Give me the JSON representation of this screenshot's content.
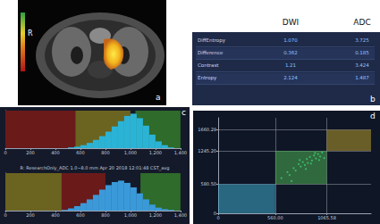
{
  "figure": {
    "labels": [
      "a",
      "b",
      "c",
      "d"
    ],
    "image": {
      "side_label": "R"
    },
    "table": {
      "columns": [
        "DWI",
        "ADC"
      ],
      "rows": [
        {
          "label": "DiffEntropy",
          "values": [
            "1.070",
            "3.725"
          ]
        },
        {
          "label": "Difference",
          "values": [
            "0.362",
            "0.185"
          ]
        },
        {
          "label": "Contrast",
          "values": [
            "1.21",
            "3.424"
          ]
        },
        {
          "label": "Entropy",
          "values": [
            "2.124",
            "1.487"
          ]
        }
      ]
    }
  },
  "chart_data": [
    {
      "type": "histogram",
      "bins": [
        0,
        50,
        100,
        150,
        200,
        250,
        300,
        350,
        400,
        450,
        500,
        550,
        600,
        650,
        700,
        750,
        800,
        850,
        900,
        950,
        1000,
        1050,
        1100,
        1150,
        1200,
        1250,
        1300,
        1350,
        1400
      ],
      "values": [
        0,
        0,
        0,
        0,
        0,
        0,
        0,
        0,
        0,
        0,
        1,
        2,
        4,
        7,
        11,
        16,
        22,
        29,
        36,
        43,
        46,
        40,
        30,
        18,
        9,
        4,
        1,
        0
      ],
      "color": "#2bb3d6",
      "xlim": [
        0,
        1400
      ],
      "xticks": [
        0,
        200,
        400,
        600,
        800,
        1000,
        1200,
        1400
      ],
      "ylim": [
        0,
        50
      ],
      "tick_labels": "x",
      "regions": [
        {
          "from": 0,
          "to": 560,
          "color": "#6b1a1a"
        },
        {
          "from": 560,
          "to": 1000,
          "color": "#6b6420"
        },
        {
          "from": 1040,
          "to": 1400,
          "color": "#2f6b2a"
        }
      ]
    },
    {
      "type": "histogram",
      "title": "R: ResearchOnly_ADC 1.0~8.0 mm Apr 20 2018 12:01:48 CST_avg",
      "bins": [
        0,
        50,
        100,
        150,
        200,
        250,
        300,
        350,
        400,
        450,
        500,
        550,
        600,
        650,
        700,
        750,
        800,
        850,
        900,
        950,
        1000,
        1050,
        1100,
        1150,
        1200,
        1250,
        1300,
        1350,
        1400
      ],
      "values": [
        0,
        0,
        0,
        0,
        0,
        0,
        0,
        0,
        0,
        1,
        3,
        6,
        10,
        15,
        21,
        28,
        34,
        38,
        40,
        37,
        31,
        23,
        15,
        8,
        4,
        2,
        1,
        0
      ],
      "color": "#3a9ad9",
      "xlim": [
        0,
        1400
      ],
      "xticks": [
        0,
        200,
        400,
        600,
        800,
        1000,
        1200,
        1400
      ],
      "ylim": [
        0,
        50
      ],
      "tick_labels": "x",
      "regions": [
        {
          "from": 0,
          "to": 450,
          "color": "#6b6420"
        },
        {
          "from": 450,
          "to": 800,
          "color": "#6b1a1a"
        },
        {
          "from": 1080,
          "to": 1400,
          "color": "#2f6b2a"
        }
      ]
    },
    {
      "type": "scatter",
      "x": [
        620,
        680,
        700,
        740,
        760,
        790,
        810,
        830,
        850,
        870,
        880,
        900,
        920,
        940,
        960,
        980,
        1000,
        1020,
        720,
        800,
        860,
        910,
        950,
        990,
        1040
      ],
      "y": [
        700,
        820,
        760,
        900,
        850,
        980,
        930,
        1020,
        960,
        1080,
        1000,
        1120,
        1050,
        1150,
        1090,
        1180,
        1130,
        1210,
        640,
        1060,
        880,
        990,
        1200,
        1060,
        1100
      ],
      "color": "#3fd07a",
      "xlim": [
        0,
        1500
      ],
      "xticks": [
        0,
        {
          "value": 560,
          "label": "560.00"
        },
        {
          "value": 1065.58,
          "label": "1065.58"
        }
      ],
      "ylim": [
        0,
        1900
      ],
      "yticks": [
        0,
        {
          "value": 580.5,
          "label": "580.50"
        },
        {
          "value": 1245.2,
          "label": "1245.20"
        },
        {
          "value": 1660.29,
          "label": "1660.29"
        }
      ],
      "grid": true,
      "regions": [
        {
          "x": [
            0,
            560
          ],
          "y": [
            0,
            580.5
          ],
          "color": "#3fa9c9"
        },
        {
          "x": [
            560,
            1065.58
          ],
          "y": [
            580.5,
            1245.2
          ],
          "color": "#4caf50"
        },
        {
          "x": [
            1065.58,
            1500
          ],
          "y": [
            1245.2,
            1660.29
          ],
          "color": "#b59b2a"
        }
      ]
    }
  ]
}
